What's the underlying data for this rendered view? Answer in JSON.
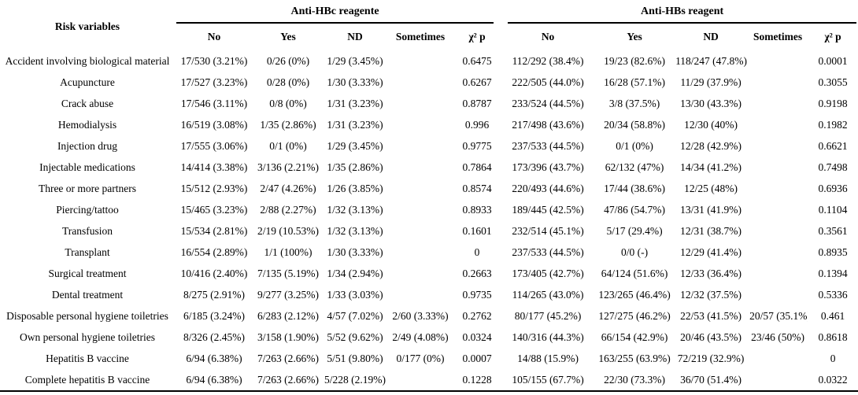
{
  "table": {
    "row_header": "Risk variables",
    "groups": [
      {
        "label": "Anti-HBc reagente",
        "columns": [
          "No",
          "Yes",
          "ND",
          "Sometimes",
          "χ² p"
        ]
      },
      {
        "label": "Anti-HBs reagent",
        "columns": [
          "No",
          "Yes",
          "ND",
          "Sometimes",
          "χ² p"
        ]
      }
    ],
    "rows": [
      {
        "label": "Accident involving biological material",
        "anti_hbc": [
          "17/530 (3.21%)",
          "0/26 (0%)",
          "1/29 (3.45%)",
          "",
          "0.6475"
        ],
        "anti_hbs": [
          "112/292 (38.4%)",
          "19/23 (82.6%)",
          "118/247 (47.8%)",
          "",
          "0.0001"
        ]
      },
      {
        "label": "Acupuncture",
        "anti_hbc": [
          "17/527 (3.23%)",
          "0/28 (0%)",
          "1/30 (3.33%)",
          "",
          "0.6267"
        ],
        "anti_hbs": [
          "222/505 (44.0%)",
          "16/28 (57.1%)",
          "11/29 (37.9%)",
          "",
          "0.3055"
        ]
      },
      {
        "label": "Crack abuse",
        "anti_hbc": [
          "17/546 (3.11%)",
          "0/8 (0%)",
          "1/31 (3.23%)",
          "",
          "0.8787"
        ],
        "anti_hbs": [
          "233/524 (44.5%)",
          "3/8 (37.5%)",
          "13/30 (43.3%)",
          "",
          "0.9198"
        ]
      },
      {
        "label": "Hemodialysis",
        "anti_hbc": [
          "16/519 (3.08%)",
          "1/35 (2.86%)",
          "1/31 (3.23%)",
          "",
          "0.996"
        ],
        "anti_hbs": [
          "217/498 (43.6%)",
          "20/34 (58.8%)",
          "12/30 (40%)",
          "",
          "0.1982"
        ]
      },
      {
        "label": "Injection drug",
        "anti_hbc": [
          "17/555 (3.06%)",
          "0/1 (0%)",
          "1/29 (3.45%)",
          "",
          "0.9775"
        ],
        "anti_hbs": [
          "237/533 (44.5%)",
          "0/1 (0%)",
          "12/28 (42.9%)",
          "",
          "0.6621"
        ]
      },
      {
        "label": "Injectable medications",
        "anti_hbc": [
          "14/414 (3.38%)",
          "3/136 (2.21%)",
          "1/35 (2.86%)",
          "",
          "0.7864"
        ],
        "anti_hbs": [
          "173/396 (43.7%)",
          "62/132 (47%)",
          "14/34 (41.2%)",
          "",
          "0.7498"
        ]
      },
      {
        "label": "Three or more partners",
        "anti_hbc": [
          "15/512 (2.93%)",
          "2/47 (4.26%)",
          "1/26 (3.85%)",
          "",
          "0.8574"
        ],
        "anti_hbs": [
          "220/493 (44.6%)",
          "17/44 (38.6%)",
          "12/25 (48%)",
          "",
          "0.6936"
        ]
      },
      {
        "label": "Piercing/tattoo",
        "anti_hbc": [
          "15/465 (3.23%)",
          "2/88 (2.27%)",
          "1/32 (3.13%)",
          "",
          "0.8933"
        ],
        "anti_hbs": [
          "189/445 (42.5%)",
          "47/86 (54.7%)",
          "13/31 (41.9%)",
          "",
          "0.1104"
        ]
      },
      {
        "label": "Transfusion",
        "anti_hbc": [
          "15/534 (2.81%)",
          "2/19 (10.53%)",
          "1/32 (3.13%)",
          "",
          "0.1601"
        ],
        "anti_hbs": [
          "232/514 (45.1%)",
          "5/17 (29.4%)",
          "12/31 (38.7%)",
          "",
          "0.3561"
        ]
      },
      {
        "label": "Transplant",
        "anti_hbc": [
          "16/554 (2.89%)",
          "1/1 (100%)",
          "1/30 (3.33%)",
          "",
          "0"
        ],
        "anti_hbs": [
          "237/533 (44.5%)",
          "0/0 (-)",
          "12/29 (41.4%)",
          "",
          "0.8935"
        ]
      },
      {
        "label": "Surgical treatment",
        "anti_hbc": [
          "10/416 (2.40%)",
          "7/135 (5.19%)",
          "1/34 (2.94%)",
          "",
          "0.2663"
        ],
        "anti_hbs": [
          "173/405 (42.7%)",
          "64/124 (51.6%)",
          "12/33 (36.4%)",
          "",
          "0.1394"
        ]
      },
      {
        "label": "Dental treatment",
        "anti_hbc": [
          "8/275 (2.91%)",
          "9/277 (3.25%)",
          "1/33 (3.03%)",
          "",
          "0.9735"
        ],
        "anti_hbs": [
          "114/265 (43.0%)",
          "123/265 (46.4%)",
          "12/32 (37.5%)",
          "",
          "0.5336"
        ]
      },
      {
        "label": "Disposable personal hygiene toiletries",
        "anti_hbc": [
          "6/185 (3.24%)",
          "6/283 (2.12%)",
          "4/57 (7.02%)",
          "2/60 (3.33%)",
          "0.2762"
        ],
        "anti_hbs": [
          "80/177 (45.2%)",
          "127/275 (46.2%)",
          "22/53 (41.5%)",
          "20/57 (35.1%)",
          "0.461"
        ]
      },
      {
        "label": "Own personal hygiene toiletries",
        "anti_hbc": [
          "8/326 (2.45%)",
          "3/158 (1.90%)",
          "5/52 (9.62%)",
          "2/49 (4.08%)",
          "0.0324"
        ],
        "anti_hbs": [
          "140/316 (44.3%)",
          "66/154 (42.9%)",
          "20/46 (43.5%)",
          "23/46 (50%)",
          "0.8618"
        ]
      },
      {
        "label": "Hepatitis B vaccine",
        "anti_hbc": [
          "6/94 (6.38%)",
          "7/263 (2.66%)",
          "5/51 (9.80%)",
          "0/177 (0%)",
          "0.0007"
        ],
        "anti_hbs": [
          "14/88 (15.9%)",
          "163/255 (63.9%)",
          "72/219 (32.9%)",
          "",
          "0"
        ]
      },
      {
        "label": "Complete hepatitis B vaccine",
        "anti_hbc": [
          "6/94 (6.38%)",
          "7/263 (2.66%)",
          "5/228 (2.19%)",
          "",
          "0.1228"
        ],
        "anti_hbs": [
          "105/155 (67.7%)",
          "22/30 (73.3%)",
          "36/70 (51.4%)",
          "",
          "0.0322"
        ]
      }
    ]
  }
}
